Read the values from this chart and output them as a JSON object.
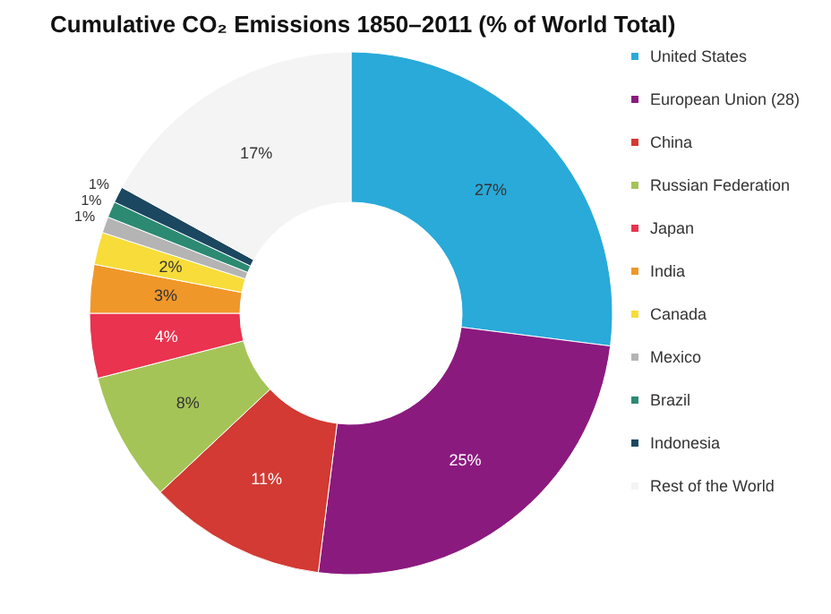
{
  "chart_data": {
    "type": "donut",
    "title": "Cumulative CO₂ Emissions 1850–2011 (% of World Total)",
    "categories": [
      "United States",
      "European Union (28)",
      "China",
      "Russian Federation",
      "Japan",
      "India",
      "Canada",
      "Mexico",
      "Brazil",
      "Indonesia",
      "Rest of the World"
    ],
    "values": [
      27,
      25,
      11,
      8,
      4,
      3,
      2,
      1,
      1,
      1,
      17
    ],
    "value_labels": [
      "27%",
      "25%",
      "11%",
      "8%",
      "4%",
      "3%",
      "2%",
      "1%",
      "1%",
      "1%",
      "17%"
    ],
    "colors": [
      "#29aad9",
      "#8b1a7f",
      "#d23a33",
      "#a5c457",
      "#e9334f",
      "#f0972a",
      "#f7dc3a",
      "#b4b4b4",
      "#2c8a73",
      "#1c4760",
      "#f4f4f4"
    ],
    "legend": "right"
  }
}
